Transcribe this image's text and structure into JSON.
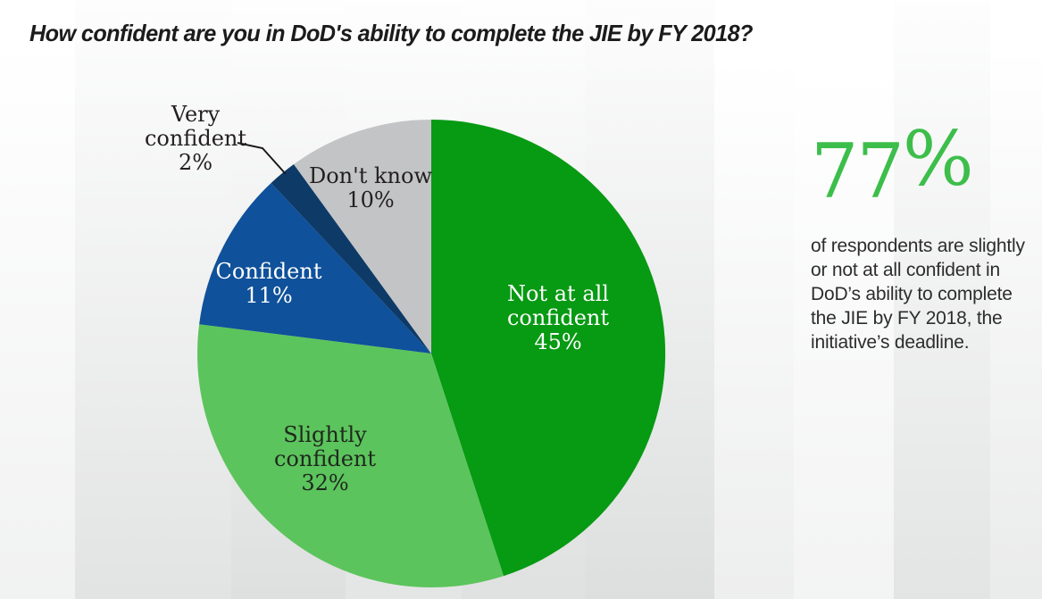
{
  "title": "How confident are you in DoD's ability to complete the JIE by FY 2018?",
  "chart_data": {
    "type": "pie",
    "title": "How confident are you in DoD's ability to complete the JIE by FY 2018?",
    "start_angle_deg": 0,
    "direction": "clockwise",
    "legend_position": "labels-on-chart",
    "slices": [
      {
        "id": "not-at-all-confident",
        "label": "Not at all confident",
        "label_lines": [
          "Not at all",
          "confident"
        ],
        "value": 45,
        "color": "#079a13",
        "text_color": "#ffffff"
      },
      {
        "id": "slightly-confident",
        "label": "Slightly confident",
        "label_lines": [
          "Slightly",
          "confident"
        ],
        "value": 32,
        "color": "#5cc45c",
        "text_color": "#1e281e"
      },
      {
        "id": "confident",
        "label": "Confident",
        "label_lines": [
          "Confident"
        ],
        "value": 11,
        "color": "#0f519a",
        "text_color": "#ffffff"
      },
      {
        "id": "very-confident",
        "label": "Very confident",
        "label_lines": [
          "Very",
          "confident"
        ],
        "value": 2,
        "color": "#0e3a67",
        "text_color": "#231f20"
      },
      {
        "id": "dont-know",
        "label": "Don't know",
        "label_lines": [
          "Don't know"
        ],
        "value": 10,
        "color": "#c3c4c6",
        "text_color": "#231f20"
      }
    ]
  },
  "callout": {
    "stat": "77",
    "percent_sign": "%",
    "color": "#3dbe4b",
    "text": "of respondents are slightly or not at all confident in DoD’s ability to complete the JIE by FY 2018, the initiative’s deadline."
  }
}
